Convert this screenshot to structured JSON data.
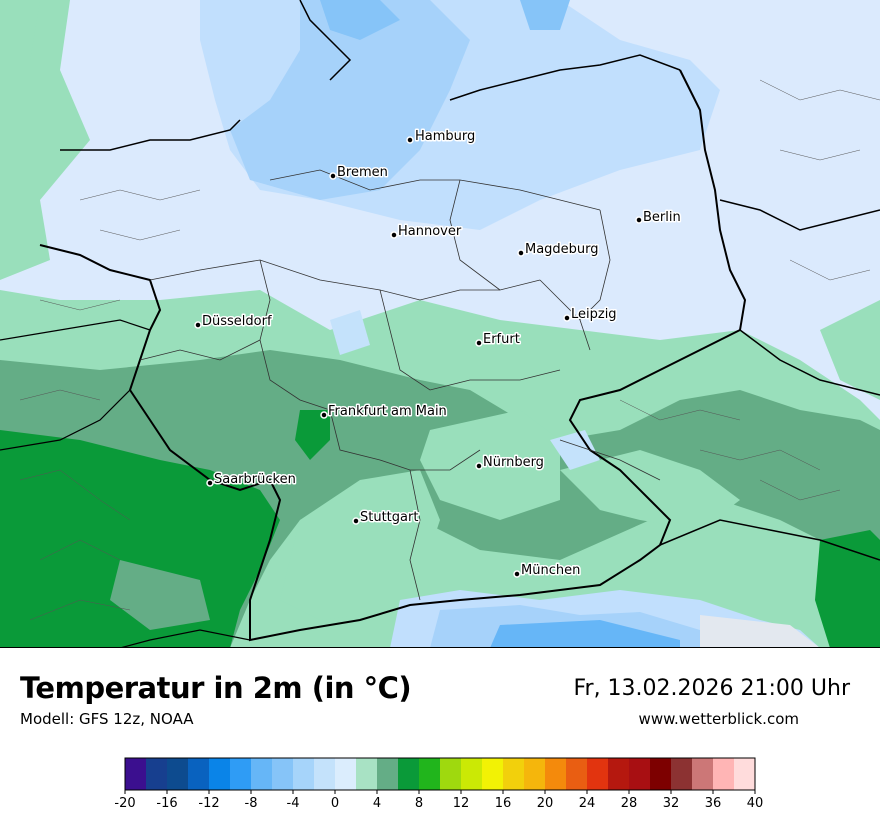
{
  "header": {
    "title": "Temperatur in 2m (in °C)",
    "model": "Modell: GFS 12z, NOAA",
    "datetime": "Fr, 13.02.2026 21:00 Uhr",
    "website": "www.wetterblick.com"
  },
  "cities": [
    {
      "name": "Hamburg"
    },
    {
      "name": "Bremen"
    },
    {
      "name": "Hannover"
    },
    {
      "name": "Berlin"
    },
    {
      "name": "Magdeburg"
    },
    {
      "name": "Düsseldorf"
    },
    {
      "name": "Leipzig"
    },
    {
      "name": "Erfurt"
    },
    {
      "name": "Frankfurt am Main"
    },
    {
      "name": "Nürnberg"
    },
    {
      "name": "Saarbrücken"
    },
    {
      "name": "Stuttgart"
    },
    {
      "name": "München"
    }
  ],
  "legend": {
    "ticks": [
      "-20",
      "-16",
      "-12",
      "-8",
      "-4",
      "0",
      "4",
      "8",
      "12",
      "16",
      "20",
      "24",
      "28",
      "32",
      "36",
      "40"
    ],
    "colors": [
      "#3b0f8f",
      "#173f8f",
      "#0d4b8f",
      "#0962bf",
      "#0a84e8",
      "#2f9cf5",
      "#66b6f7",
      "#86c4f8",
      "#a6d4fa",
      "#c4e2fb",
      "#dbedfd",
      "#a8e2c4",
      "#64ad86",
      "#0a9a39",
      "#21b51c",
      "#9fd90e",
      "#cbe905",
      "#f2f205",
      "#f2d00c",
      "#f5b60c",
      "#f48a0c",
      "#e95e12",
      "#e2340f",
      "#b5180f",
      "#a80f12",
      "#7d0000",
      "#8c3232",
      "#cc7777",
      "#ffb5b5",
      "#ffdcdc"
    ]
  },
  "colors": {
    "lightblue": "#d7e8fd",
    "midblue": "#c1dffd",
    "blue": "#9fd0fb",
    "mint": "#99dfbb",
    "sage": "#64ad86",
    "green": "#0a9a39",
    "grey": "#e1e6ec"
  }
}
